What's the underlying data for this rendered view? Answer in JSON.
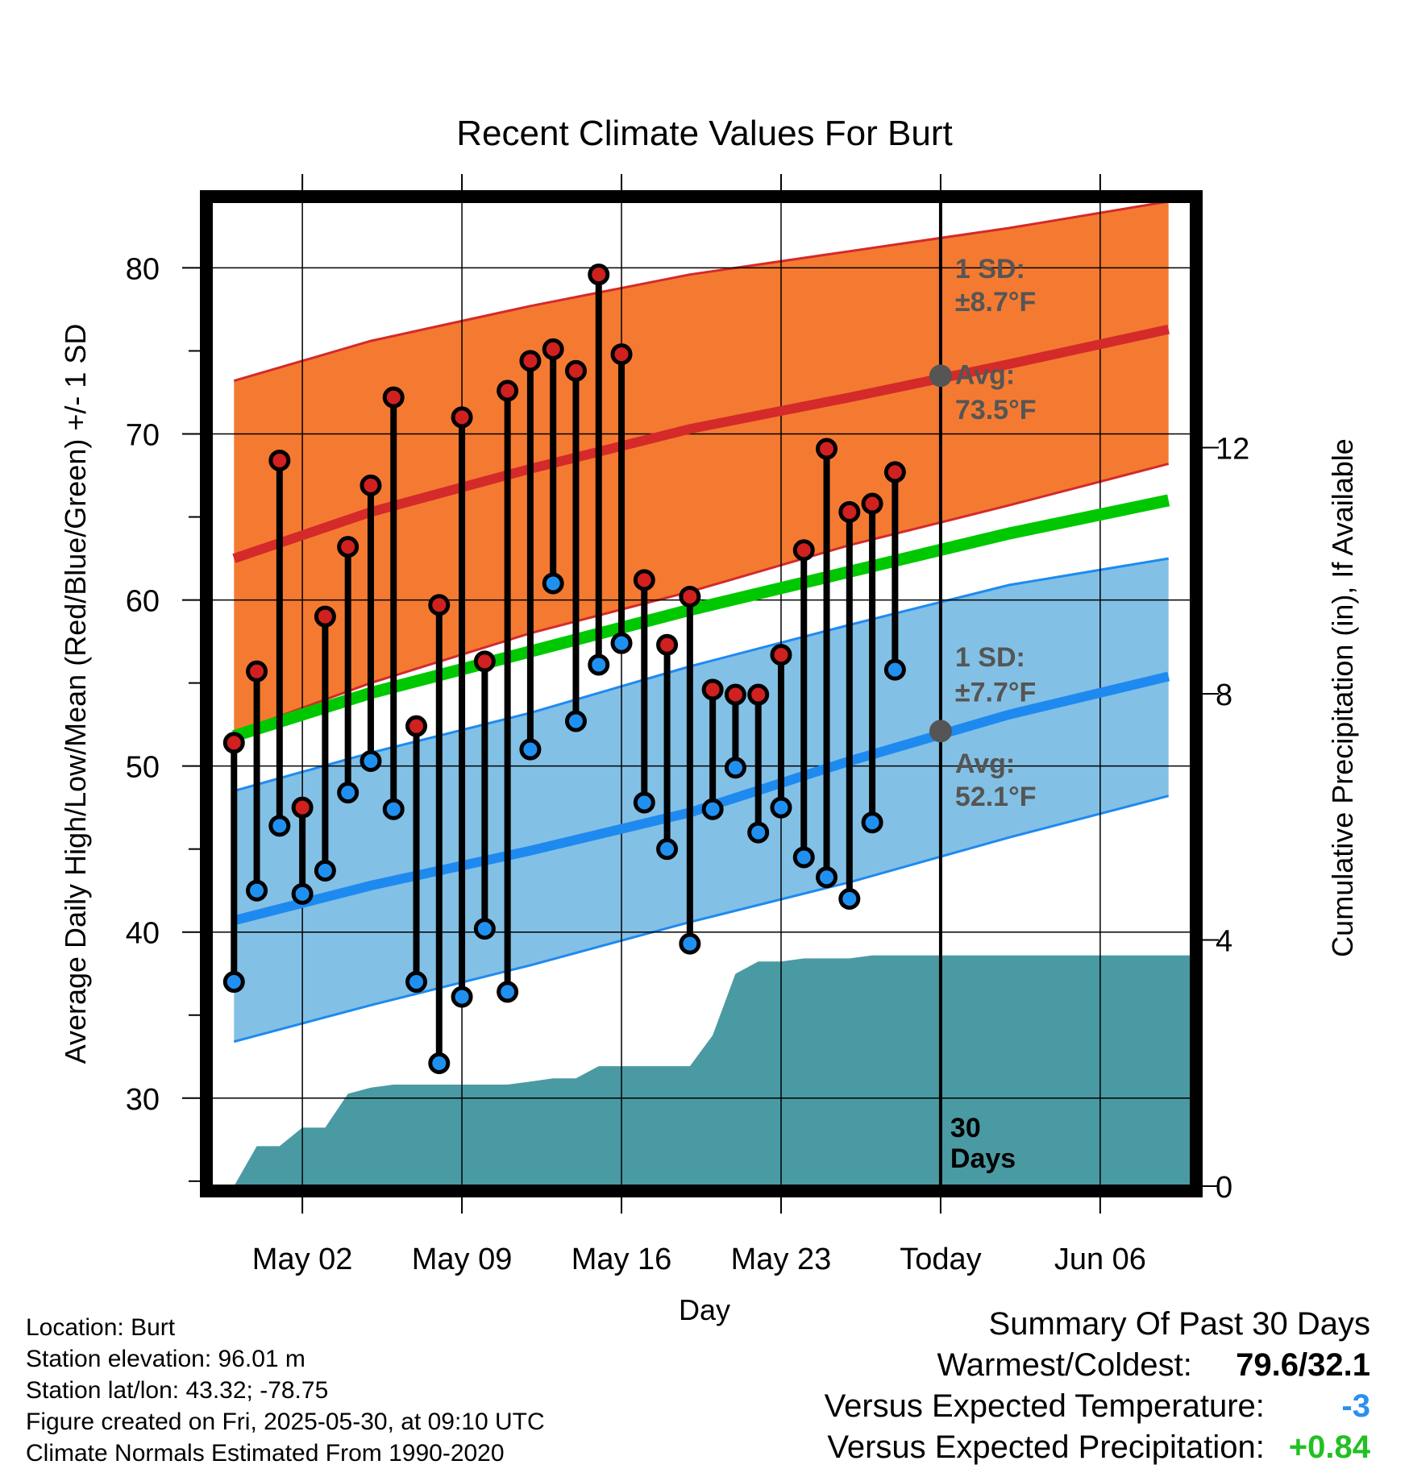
{
  "chart_data": {
    "type": "line",
    "title": "Recent Climate Values For Burt",
    "xlabel": "Day",
    "ylabel_left": "Average Daily High/Low/Mean (Red/Blue/Green) +/- 1 SD",
    "ylabel_right": "Cumulative Precipitation (in), If Available",
    "ylim_left": [
      24.7,
      84.0
    ],
    "ylim_right": [
      0,
      16
    ],
    "y_ticks_left": [
      "30",
      "40",
      "50",
      "60",
      "70",
      "80"
    ],
    "y_ticks_right": [
      "0",
      "4",
      "8",
      "12"
    ],
    "x_range": [
      "2025-04-28",
      "2025-06-10"
    ],
    "x_tick_dates": [
      "2025-05-02",
      "2025-05-09",
      "2025-05-16",
      "2025-05-23",
      "2025-05-30",
      "2025-06-06"
    ],
    "x_tick_labels": [
      "May 02",
      "May 09",
      "May 16",
      "May 23",
      "Today",
      "Jun 06"
    ],
    "grid": true,
    "today": "2025-05-30",
    "colors": {
      "high_band": "#f47a32",
      "high_line": "#d42a2a",
      "low_band": "#83c0e5",
      "low_line": "#1e8af0",
      "mean_line": "#00c800",
      "precip": "#4a9aa3",
      "high_marker": "#d02020",
      "low_marker": "#2090f0"
    },
    "normals": {
      "dates": [
        "2025-04-29",
        "2025-05-05",
        "2025-05-12",
        "2025-05-19",
        "2025-05-26",
        "2025-06-02",
        "2025-06-09"
      ],
      "high_avg": [
        62.5,
        65.3,
        67.9,
        70.3,
        72.2,
        74.2,
        76.3
      ],
      "high_upper": [
        73.2,
        75.6,
        77.7,
        79.6,
        81.0,
        82.4,
        84.0
      ],
      "high_lower": [
        52.0,
        55.0,
        58.0,
        60.5,
        63.3,
        65.7,
        68.2
      ],
      "low_avg": [
        40.7,
        42.8,
        44.9,
        47.2,
        50.3,
        53.1,
        55.4
      ],
      "low_upper": [
        48.5,
        50.8,
        53.2,
        56.0,
        58.5,
        60.9,
        62.5
      ],
      "low_lower": [
        33.4,
        35.6,
        38.0,
        40.6,
        43.0,
        45.7,
        48.2
      ],
      "mean_avg": [
        51.8,
        54.4,
        56.9,
        59.4,
        61.7,
        64.0,
        66.0
      ]
    },
    "daily": {
      "dates": [
        "2025-04-29",
        "2025-04-30",
        "2025-05-01",
        "2025-05-02",
        "2025-05-03",
        "2025-05-04",
        "2025-05-05",
        "2025-05-06",
        "2025-05-07",
        "2025-05-08",
        "2025-05-09",
        "2025-05-10",
        "2025-05-11",
        "2025-05-12",
        "2025-05-13",
        "2025-05-14",
        "2025-05-15",
        "2025-05-16",
        "2025-05-17",
        "2025-05-18",
        "2025-05-19",
        "2025-05-20",
        "2025-05-21",
        "2025-05-22",
        "2025-05-23",
        "2025-05-24",
        "2025-05-25",
        "2025-05-26",
        "2025-05-27",
        "2025-05-28"
      ],
      "high": [
        51.4,
        55.7,
        68.4,
        47.5,
        59.0,
        63.2,
        66.9,
        72.2,
        52.4,
        59.7,
        71.0,
        56.3,
        72.6,
        74.4,
        75.1,
        73.8,
        79.6,
        74.8,
        61.2,
        57.3,
        60.2,
        54.6,
        54.3,
        54.3,
        56.7,
        63.0,
        69.1,
        65.3,
        65.8,
        67.7
      ],
      "low": [
        37.0,
        42.5,
        46.4,
        42.3,
        43.7,
        48.4,
        50.3,
        47.4,
        37.0,
        32.1,
        36.1,
        40.2,
        36.4,
        51.0,
        61.0,
        52.7,
        56.1,
        57.4,
        47.8,
        45.0,
        39.3,
        47.4,
        49.9,
        46.0,
        47.5,
        44.5,
        43.3,
        42.0,
        46.6,
        55.8
      ]
    },
    "precip": {
      "dates": [
        "2025-04-29",
        "2025-04-30",
        "2025-05-01",
        "2025-05-02",
        "2025-05-03",
        "2025-05-04",
        "2025-05-05",
        "2025-05-06",
        "2025-05-07",
        "2025-05-08",
        "2025-05-09",
        "2025-05-10",
        "2025-05-11",
        "2025-05-12",
        "2025-05-13",
        "2025-05-14",
        "2025-05-15",
        "2025-05-16",
        "2025-05-17",
        "2025-05-18",
        "2025-05-19",
        "2025-05-20",
        "2025-05-21",
        "2025-05-22",
        "2025-05-23",
        "2025-05-24",
        "2025-05-25",
        "2025-05-26",
        "2025-05-27",
        "2025-05-28",
        "2025-05-29",
        "2025-05-30",
        "2025-06-10"
      ],
      "cumulative": [
        0.0,
        0.65,
        0.65,
        0.95,
        0.95,
        1.5,
        1.6,
        1.65,
        1.65,
        1.65,
        1.65,
        1.65,
        1.65,
        1.7,
        1.75,
        1.75,
        1.95,
        1.95,
        1.95,
        1.95,
        1.95,
        2.45,
        3.45,
        3.65,
        3.65,
        3.7,
        3.7,
        3.7,
        3.75,
        3.75,
        3.75,
        3.75,
        3.75
      ]
    },
    "annotations": {
      "high_sd_label": "1 SD:",
      "high_sd_value": "±8.7°F",
      "high_avg_label": "Avg:",
      "high_avg_value": "73.5°F",
      "low_sd_label": "1 SD:",
      "low_sd_value": "±7.7°F",
      "low_avg_label": "Avg:",
      "low_avg_value": "52.1°F",
      "today_high_avg": 73.5,
      "today_low_avg": 52.1,
      "window_label_1": "30",
      "window_label_2": "Days"
    }
  },
  "footer_left": {
    "location": "Location: Burt",
    "elevation": "Station elevation: 96.01 m",
    "latlon": "Station lat/lon: 43.32; -78.75",
    "created": "Figure created on Fri, 2025-05-30, at 09:10 UTC",
    "normals": "Climate Normals Estimated From 1990-2020"
  },
  "summary": {
    "heading": "Summary Of Past 30 Days",
    "warmest_label": "Warmest/Coldest:",
    "warmest_value": "79.6/32.1",
    "temp_label": "Versus Expected Temperature:",
    "temp_value": "-3",
    "temp_color": "#2b8ff0",
    "precip_label": "Versus Expected Precipitation:",
    "precip_value": "+0.84",
    "precip_color": "#22c022"
  }
}
